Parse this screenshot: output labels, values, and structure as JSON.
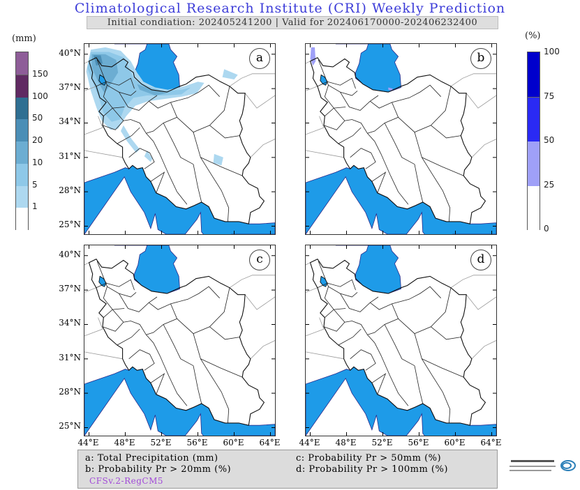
{
  "title": "Climatological Research Institute (CRI) Weekly Prediction",
  "subtitle": "Initial condiation: 202405241200 | Valid for 202406170000-202406232400",
  "left_colorbar": {
    "unit": "(mm)",
    "ticks": [
      "1",
      "5",
      "10",
      "20",
      "50",
      "100",
      "150"
    ],
    "colors": [
      "#ffffff",
      "#add8f0",
      "#8ec8e8",
      "#6cadd2",
      "#4b8eb6",
      "#2f6f92",
      "#602a62",
      "#8e5d98"
    ]
  },
  "right_colorbar": {
    "unit": "(%)",
    "ticks": [
      "0",
      "25",
      "50",
      "75",
      "100"
    ],
    "colors": [
      "#ffffff",
      "#9fa0f8",
      "#2a2af4",
      "#0000cc"
    ]
  },
  "panels": [
    {
      "label": "a"
    },
    {
      "label": "b"
    },
    {
      "label": "c"
    },
    {
      "label": "d"
    }
  ],
  "lat_labels": [
    "40°N",
    "37°N",
    "34°N",
    "31°N",
    "28°N",
    "25°N"
  ],
  "lon_labels": [
    "44°E",
    "48°E",
    "52°E",
    "56°E",
    "60°E",
    "64°E"
  ],
  "legend": {
    "a": "a: Total Precipitation (mm)",
    "b": "b: Probability Pr > 20mm (%)",
    "c": "c: Probability Pr > 50mm (%)",
    "d": "d: Probability Pr > 100mm (%)",
    "model": "CFSv.2-RegCM5"
  },
  "colors": {
    "water": "#1e9be8",
    "title": "#3c3cd8",
    "model_text": "#a24ad8"
  },
  "logo_icon": "institute-logo-icon"
}
